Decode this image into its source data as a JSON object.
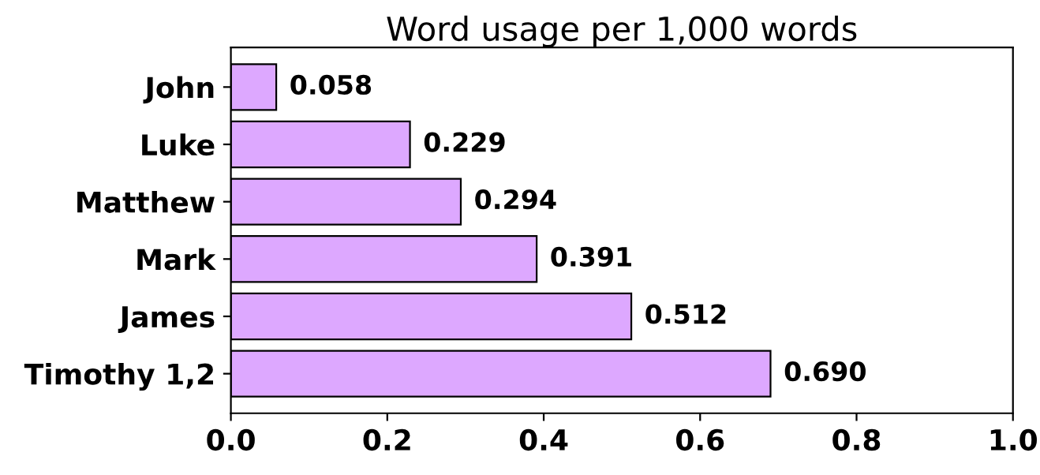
{
  "chart_data": {
    "type": "bar",
    "orientation": "horizontal",
    "title": "Word usage per 1,000 words",
    "categories": [
      "John",
      "Luke",
      "Matthew",
      "Mark",
      "James",
      "Timothy 1,2"
    ],
    "values": [
      0.058,
      0.229,
      0.294,
      0.391,
      0.512,
      0.69
    ],
    "value_labels": [
      "0.058",
      "0.229",
      "0.294",
      "0.391",
      "0.512",
      "0.690"
    ],
    "color": "#dda8ff",
    "xlim": [
      0,
      1
    ],
    "xticks": [
      {
        "value": 0,
        "label": "0.0"
      },
      {
        "value": 0.2,
        "label": "0.2"
      },
      {
        "value": 0.4,
        "label": "0.4"
      },
      {
        "value": 0.6,
        "label": "0.6"
      },
      {
        "value": 0.8,
        "label": "0.8"
      },
      {
        "value": 1,
        "label": "1.0"
      }
    ],
    "grid": false,
    "legend": false
  }
}
